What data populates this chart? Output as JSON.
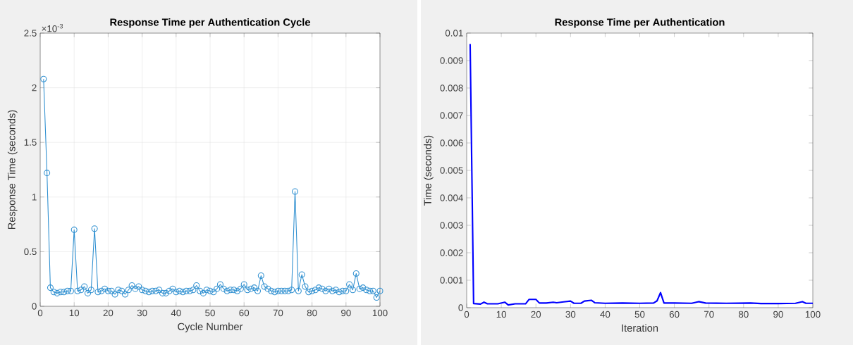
{
  "chart_data": [
    {
      "type": "line",
      "title": "Response Time per Authentication Cycle",
      "xlabel": "Cycle Number",
      "ylabel": "Response Time (seconds)",
      "annotations": [
        "×10$^{-3}$"
      ],
      "x": [
        1,
        2,
        3,
        4,
        5,
        6,
        7,
        8,
        9,
        10,
        11,
        12,
        13,
        14,
        15,
        16,
        17,
        18,
        19,
        20,
        21,
        22,
        23,
        24,
        25,
        26,
        27,
        28,
        29,
        30,
        31,
        32,
        33,
        34,
        35,
        36,
        37,
        38,
        39,
        40,
        41,
        42,
        43,
        44,
        45,
        46,
        47,
        48,
        49,
        50,
        51,
        52,
        53,
        54,
        55,
        56,
        57,
        58,
        59,
        60,
        61,
        62,
        63,
        64,
        65,
        66,
        67,
        68,
        69,
        70,
        71,
        72,
        73,
        74,
        75,
        76,
        77,
        78,
        79,
        80,
        81,
        82,
        83,
        84,
        85,
        86,
        87,
        88,
        89,
        90,
        91,
        92,
        93,
        94,
        95,
        96,
        97,
        98,
        99,
        100
      ],
      "series": [
        {
          "color": "#2e8fd0",
          "values": [
            2.08,
            1.22,
            0.17,
            0.13,
            0.12,
            0.13,
            0.13,
            0.14,
            0.14,
            0.7,
            0.14,
            0.15,
            0.18,
            0.12,
            0.15,
            0.71,
            0.13,
            0.14,
            0.16,
            0.14,
            0.14,
            0.11,
            0.15,
            0.14,
            0.11,
            0.15,
            0.19,
            0.16,
            0.18,
            0.15,
            0.14,
            0.13,
            0.14,
            0.14,
            0.15,
            0.12,
            0.12,
            0.14,
            0.16,
            0.13,
            0.14,
            0.13,
            0.14,
            0.14,
            0.15,
            0.19,
            0.14,
            0.12,
            0.15,
            0.14,
            0.13,
            0.16,
            0.2,
            0.16,
            0.14,
            0.15,
            0.15,
            0.14,
            0.16,
            0.2,
            0.15,
            0.16,
            0.17,
            0.14,
            0.28,
            0.18,
            0.16,
            0.14,
            0.13,
            0.14,
            0.14,
            0.14,
            0.14,
            0.15,
            1.05,
            0.14,
            0.29,
            0.18,
            0.13,
            0.14,
            0.15,
            0.17,
            0.16,
            0.14,
            0.16,
            0.14,
            0.15,
            0.13,
            0.14,
            0.14,
            0.2,
            0.15,
            0.3,
            0.16,
            0.17,
            0.15,
            0.14,
            0.14,
            0.08,
            0.14
          ]
        }
      ],
      "xlim": [
        0,
        100
      ],
      "xticks": [
        0,
        10,
        20,
        30,
        40,
        50,
        60,
        70,
        80,
        90,
        100
      ],
      "ylim": [
        0,
        2.5
      ],
      "yticks": [
        0,
        0.5,
        1,
        1.5,
        2,
        2.5
      ],
      "grid": true,
      "marker": "circle"
    },
    {
      "type": "line",
      "title": "Response Time per Authentication",
      "xlabel": "Iteration",
      "ylabel": "Time (seconds)",
      "x": [
        1,
        2,
        4,
        5,
        6,
        9,
        11,
        12,
        14,
        17,
        18,
        20,
        21,
        23,
        25,
        26,
        28,
        30,
        31,
        33,
        34,
        36,
        37,
        40,
        45,
        50,
        54,
        55,
        56,
        57,
        60,
        65,
        67,
        69,
        75,
        82,
        85,
        90,
        95,
        97,
        98,
        100
      ],
      "series": [
        {
          "color": "#0000ff",
          "values": [
            0.0096,
            0.00015,
            0.00013,
            0.0002,
            0.00014,
            0.00014,
            0.0002,
            0.0001,
            0.00014,
            0.00014,
            0.0003,
            0.0003,
            0.00017,
            0.00017,
            0.0002,
            0.00018,
            0.00021,
            0.00024,
            0.00016,
            0.00016,
            0.00024,
            0.00027,
            0.00018,
            0.00016,
            0.00017,
            0.00016,
            0.00017,
            0.00025,
            0.00055,
            0.00017,
            0.00017,
            0.00016,
            0.00022,
            0.00017,
            0.00016,
            0.00017,
            0.00015,
            0.00015,
            0.00016,
            0.00022,
            0.00016,
            0.00016
          ]
        }
      ],
      "xlim": [
        0,
        100
      ],
      "xticks": [
        0,
        10,
        20,
        30,
        40,
        50,
        60,
        70,
        80,
        90,
        100
      ],
      "ylim": [
        0,
        0.01
      ],
      "yticks": [
        0,
        0.001,
        0.002,
        0.003,
        0.004,
        0.005,
        0.006,
        0.007,
        0.008,
        0.009,
        0.01
      ],
      "grid": false,
      "marker": "none"
    }
  ]
}
